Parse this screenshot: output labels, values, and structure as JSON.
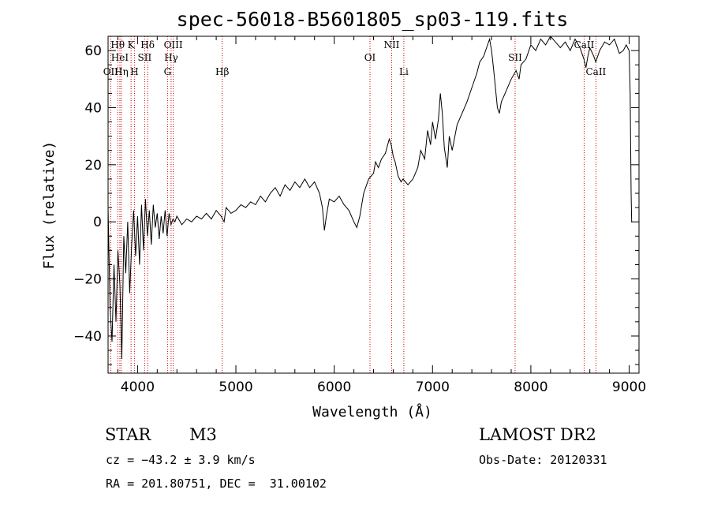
{
  "chart_data": {
    "type": "line",
    "title": "spec-56018-B5601805_sp03-119.fits",
    "xlabel": "Wavelength (Å)",
    "ylabel": "Flux (relative)",
    "xlim": [
      3700,
      9100
    ],
    "ylim": [
      -53,
      65
    ],
    "xticks": [
      4000,
      5000,
      6000,
      7000,
      8000,
      9000
    ],
    "yticks": [
      -40,
      -20,
      0,
      20,
      40,
      60
    ],
    "grid": false,
    "series": [
      {
        "points": [
          [
            3700,
            5
          ],
          [
            3720,
            -30
          ],
          [
            3740,
            -42
          ],
          [
            3760,
            -15
          ],
          [
            3780,
            -35
          ],
          [
            3800,
            -10
          ],
          [
            3820,
            -22
          ],
          [
            3840,
            -48
          ],
          [
            3860,
            -5
          ],
          [
            3880,
            -18
          ],
          [
            3900,
            0
          ],
          [
            3920,
            -25
          ],
          [
            3940,
            -8
          ],
          [
            3960,
            4
          ],
          [
            3980,
            -12
          ],
          [
            4000,
            2
          ],
          [
            4020,
            -15
          ],
          [
            4040,
            6
          ],
          [
            4060,
            -10
          ],
          [
            4080,
            8
          ],
          [
            4100,
            -5
          ],
          [
            4120,
            4
          ],
          [
            4140,
            -8
          ],
          [
            4160,
            6
          ],
          [
            4180,
            -2
          ],
          [
            4200,
            3
          ],
          [
            4220,
            -6
          ],
          [
            4240,
            2
          ],
          [
            4260,
            -4
          ],
          [
            4280,
            4
          ],
          [
            4300,
            -5
          ],
          [
            4320,
            3
          ],
          [
            4340,
            -1
          ],
          [
            4360,
            1
          ],
          [
            4380,
            0
          ],
          [
            4400,
            2
          ],
          [
            4450,
            -1
          ],
          [
            4500,
            1
          ],
          [
            4550,
            0
          ],
          [
            4600,
            2
          ],
          [
            4650,
            1
          ],
          [
            4700,
            3
          ],
          [
            4750,
            1
          ],
          [
            4800,
            4
          ],
          [
            4850,
            2
          ],
          [
            4880,
            0
          ],
          [
            4900,
            5
          ],
          [
            4950,
            3
          ],
          [
            5000,
            4
          ],
          [
            5050,
            6
          ],
          [
            5100,
            5
          ],
          [
            5150,
            7
          ],
          [
            5200,
            6
          ],
          [
            5250,
            9
          ],
          [
            5300,
            7
          ],
          [
            5350,
            10
          ],
          [
            5400,
            12
          ],
          [
            5450,
            9
          ],
          [
            5500,
            13
          ],
          [
            5550,
            11
          ],
          [
            5600,
            14
          ],
          [
            5650,
            12
          ],
          [
            5700,
            15
          ],
          [
            5750,
            12
          ],
          [
            5800,
            14
          ],
          [
            5850,
            10
          ],
          [
            5880,
            5
          ],
          [
            5900,
            -3
          ],
          [
            5920,
            2
          ],
          [
            5950,
            8
          ],
          [
            6000,
            7
          ],
          [
            6050,
            9
          ],
          [
            6100,
            6
          ],
          [
            6150,
            4
          ],
          [
            6200,
            0
          ],
          [
            6230,
            -2
          ],
          [
            6260,
            2
          ],
          [
            6300,
            10
          ],
          [
            6350,
            15
          ],
          [
            6400,
            17
          ],
          [
            6420,
            21
          ],
          [
            6450,
            19
          ],
          [
            6480,
            22
          ],
          [
            6520,
            24
          ],
          [
            6560,
            29
          ],
          [
            6580,
            27
          ],
          [
            6600,
            23
          ],
          [
            6620,
            21
          ],
          [
            6650,
            16
          ],
          [
            6680,
            14
          ],
          [
            6700,
            15
          ],
          [
            6750,
            13
          ],
          [
            6800,
            15
          ],
          [
            6850,
            19
          ],
          [
            6880,
            25
          ],
          [
            6920,
            22
          ],
          [
            6950,
            32
          ],
          [
            6980,
            27
          ],
          [
            7000,
            35
          ],
          [
            7030,
            29
          ],
          [
            7060,
            36
          ],
          [
            7080,
            45
          ],
          [
            7100,
            38
          ],
          [
            7120,
            26
          ],
          [
            7150,
            19
          ],
          [
            7170,
            30
          ],
          [
            7200,
            25
          ],
          [
            7250,
            34
          ],
          [
            7300,
            38
          ],
          [
            7350,
            42
          ],
          [
            7400,
            47
          ],
          [
            7450,
            52
          ],
          [
            7480,
            56
          ],
          [
            7520,
            58
          ],
          [
            7550,
            61
          ],
          [
            7580,
            64
          ],
          [
            7600,
            60
          ],
          [
            7620,
            54
          ],
          [
            7640,
            47
          ],
          [
            7660,
            40
          ],
          [
            7680,
            38
          ],
          [
            7700,
            42
          ],
          [
            7750,
            46
          ],
          [
            7800,
            50
          ],
          [
            7850,
            53
          ],
          [
            7880,
            50
          ],
          [
            7900,
            55
          ],
          [
            7950,
            57
          ],
          [
            8000,
            62
          ],
          [
            8050,
            60
          ],
          [
            8100,
            64
          ],
          [
            8150,
            62
          ],
          [
            8200,
            65
          ],
          [
            8250,
            63
          ],
          [
            8300,
            61
          ],
          [
            8350,
            63
          ],
          [
            8400,
            60
          ],
          [
            8450,
            64
          ],
          [
            8500,
            61
          ],
          [
            8540,
            57
          ],
          [
            8560,
            54
          ],
          [
            8580,
            58
          ],
          [
            8600,
            61
          ],
          [
            8640,
            58
          ],
          [
            8660,
            56
          ],
          [
            8700,
            60
          ],
          [
            8750,
            63
          ],
          [
            8800,
            62
          ],
          [
            8850,
            64
          ],
          [
            8900,
            59
          ],
          [
            8940,
            60
          ],
          [
            8970,
            62
          ],
          [
            9000,
            60
          ],
          [
            9010,
            45
          ],
          [
            9020,
            10
          ],
          [
            9025,
            0
          ]
        ]
      }
    ],
    "line_markers": [
      {
        "label": "Hθ",
        "x": 3798,
        "row": 1
      },
      {
        "label": "OII",
        "x": 3727,
        "row": 3
      },
      {
        "label": "HeI",
        "x": 3820,
        "row": 2
      },
      {
        "label": "Hη",
        "x": 3835,
        "row": 3
      },
      {
        "label": "K",
        "x": 3934,
        "row": 1
      },
      {
        "label": "SII",
        "x": 4072,
        "row": 2
      },
      {
        "label": "H",
        "x": 3968,
        "row": 3
      },
      {
        "label": "Hδ",
        "x": 4102,
        "row": 1
      },
      {
        "label": "OIII",
        "x": 4363,
        "row": 1
      },
      {
        "label": "Hγ",
        "x": 4341,
        "row": 2
      },
      {
        "label": "G",
        "x": 4305,
        "row": 3
      },
      {
        "label": "Hβ",
        "x": 4861,
        "row": 3
      },
      {
        "label": "OI",
        "x": 6364,
        "row": 2
      },
      {
        "label": "NII",
        "x": 6584,
        "row": 1
      },
      {
        "label": "Li",
        "x": 6708,
        "row": 3
      },
      {
        "label": "SII",
        "x": 7840,
        "row": 2
      },
      {
        "label": "CaII",
        "x": 8542,
        "row": 1
      },
      {
        "label": "CaII",
        "x": 8662,
        "row": 3
      }
    ]
  },
  "info": {
    "class": "STAR",
    "subclass": "M3",
    "survey": "LAMOST DR2",
    "cz": "cz = −43.2 ± 3.9 km/s",
    "obs_date": "Obs-Date: 20120331",
    "radec": "RA = 201.80751, DEC =  31.00102"
  },
  "colors": {
    "spectrum": "#000000",
    "line_markers": "#cc0000"
  }
}
